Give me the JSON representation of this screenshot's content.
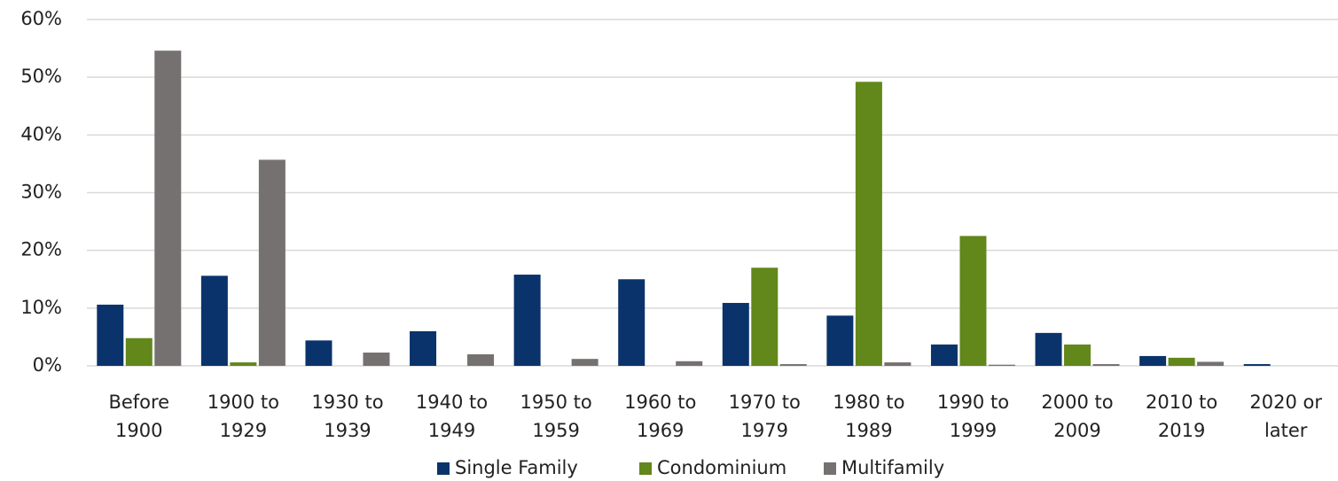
{
  "chart_data": {
    "type": "bar",
    "categories": [
      "Before 1900",
      "1900 to 1929",
      "1930 to 1939",
      "1940 to 1949",
      "1950 to 1959",
      "1960 to 1969",
      "1970 to 1979",
      "1980 to 1989",
      "1990 to 1999",
      "2000 to 2009",
      "2010 to 2019",
      "2020 or later"
    ],
    "series": [
      {
        "name": "Single Family",
        "color": "#0a336b",
        "values": [
          10.6,
          15.6,
          4.4,
          6.0,
          15.8,
          15.0,
          10.9,
          8.7,
          3.7,
          5.7,
          1.7,
          0.3
        ]
      },
      {
        "name": "Condominium",
        "color": "#62871a",
        "values": [
          4.8,
          0.6,
          0,
          0,
          0,
          0,
          17.0,
          49.2,
          22.5,
          3.7,
          1.4,
          0
        ]
      },
      {
        "name": "Multifamily",
        "color": "#767171",
        "values": [
          54.6,
          35.7,
          2.3,
          2.0,
          1.2,
          0.8,
          0.3,
          0.6,
          0.2,
          0.3,
          0.7,
          0
        ]
      }
    ],
    "ylim": [
      0,
      60
    ],
    "yticks": [
      {
        "value": 0,
        "label": "0%"
      },
      {
        "value": 10,
        "label": "10%"
      },
      {
        "value": 20,
        "label": "20%"
      },
      {
        "value": 30,
        "label": "30%"
      },
      {
        "value": 40,
        "label": "40%"
      },
      {
        "value": 50,
        "label": "50%"
      },
      {
        "value": 60,
        "label": "60%"
      }
    ],
    "grid": true,
    "legend": "bottom"
  }
}
